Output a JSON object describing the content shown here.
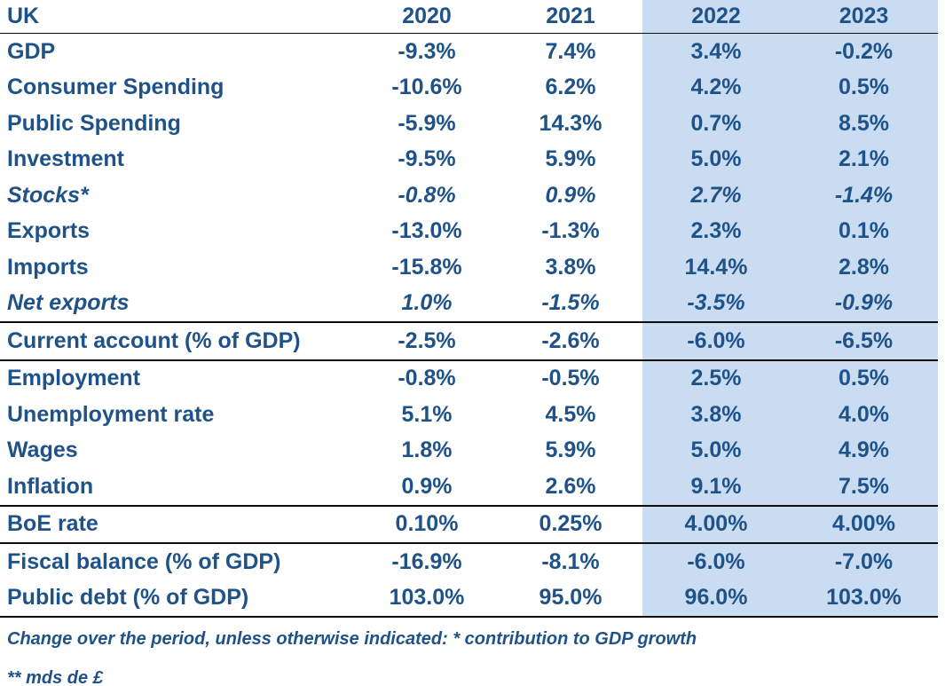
{
  "chart_data": {
    "type": "table",
    "title": "UK",
    "columns": [
      "UK",
      "2020",
      "2021",
      "2022",
      "2023"
    ],
    "highlighted_columns": [
      "2022",
      "2023"
    ],
    "rows": [
      {
        "label": "GDP",
        "values": [
          "-9.3%",
          "7.4%",
          "3.4%",
          "-0.2%"
        ],
        "italic": false,
        "border_top": false,
        "border_bottom": false
      },
      {
        "label": "Consumer Spending",
        "values": [
          "-10.6%",
          "6.2%",
          "4.2%",
          "0.5%"
        ],
        "italic": false,
        "border_top": false,
        "border_bottom": false
      },
      {
        "label": "Public Spending",
        "values": [
          "-5.9%",
          "14.3%",
          "0.7%",
          "8.5%"
        ],
        "italic": false,
        "border_top": false,
        "border_bottom": false
      },
      {
        "label": "Investment",
        "values": [
          "-9.5%",
          "5.9%",
          "5.0%",
          "2.1%"
        ],
        "italic": false,
        "border_top": false,
        "border_bottom": false
      },
      {
        "label": "Stocks*",
        "values": [
          "-0.8%",
          "0.9%",
          "2.7%",
          "-1.4%"
        ],
        "italic": true,
        "border_top": false,
        "border_bottom": false
      },
      {
        "label": "Exports",
        "values": [
          "-13.0%",
          "-1.3%",
          "2.3%",
          "0.1%"
        ],
        "italic": false,
        "border_top": false,
        "border_bottom": false
      },
      {
        "label": "Imports",
        "values": [
          "-15.8%",
          "3.8%",
          "14.4%",
          "2.8%"
        ],
        "italic": false,
        "border_top": false,
        "border_bottom": false
      },
      {
        "label": "Net exports",
        "values": [
          "1.0%",
          "-1.5%",
          "-3.5%",
          "-0.9%"
        ],
        "italic": true,
        "border_top": false,
        "border_bottom": false
      },
      {
        "label": "Current account (% of GDP)",
        "values": [
          "-2.5%",
          "-2.6%",
          "-6.0%",
          "-6.5%"
        ],
        "italic": false,
        "border_top": true,
        "border_bottom": true
      },
      {
        "label": "Employment",
        "values": [
          "-0.8%",
          "-0.5%",
          "2.5%",
          "0.5%"
        ],
        "italic": false,
        "border_top": false,
        "border_bottom": false
      },
      {
        "label": "Unemployment rate",
        "values": [
          "5.1%",
          "4.5%",
          "3.8%",
          "4.0%"
        ],
        "italic": false,
        "border_top": false,
        "border_bottom": false
      },
      {
        "label": "Wages",
        "values": [
          "1.8%",
          "5.9%",
          "5.0%",
          "4.9%"
        ],
        "italic": false,
        "border_top": false,
        "border_bottom": false
      },
      {
        "label": "Inflation",
        "values": [
          "0.9%",
          "2.6%",
          "9.1%",
          "7.5%"
        ],
        "italic": false,
        "border_top": false,
        "border_bottom": false
      },
      {
        "label": "BoE rate",
        "values": [
          "0.10%",
          "0.25%",
          "4.00%",
          "4.00%"
        ],
        "italic": false,
        "border_top": true,
        "border_bottom": true
      },
      {
        "label": "Fiscal balance (% of GDP)",
        "values": [
          "-16.9%",
          "-8.1%",
          "-6.0%",
          "-7.0%"
        ],
        "italic": false,
        "border_top": false,
        "border_bottom": false
      },
      {
        "label": "Public debt (% of GDP)",
        "values": [
          "103.0%",
          "95.0%",
          "96.0%",
          "103.0%"
        ],
        "italic": false,
        "border_top": false,
        "border_bottom": true
      }
    ],
    "footnotes": [
      "Change over the period, unless otherwise indicated: * contribution to GDP growth",
      "** mds de £"
    ],
    "layout": {
      "highlight_color": "#c9dcf1",
      "text_color": "#1f5288",
      "border_color": "#0d0d0d"
    }
  }
}
